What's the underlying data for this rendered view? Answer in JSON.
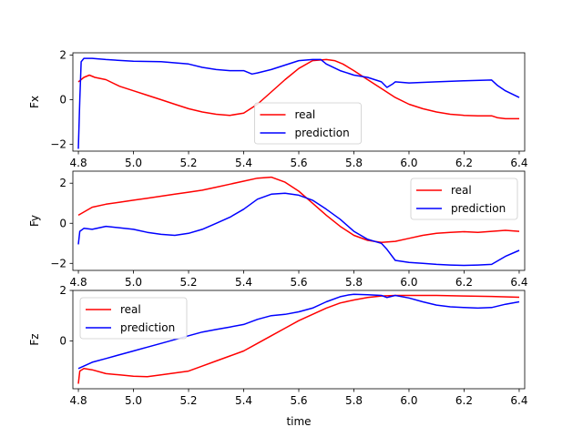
{
  "figure": {
    "xlabel": "time"
  },
  "chart_data": [
    {
      "type": "line",
      "ylabel": "Fx",
      "xlim": [
        4.78,
        6.42
      ],
      "ylim": [
        -2.3,
        2.1
      ],
      "xticks": [
        4.8,
        5.0,
        5.2,
        5.4,
        5.6,
        5.8,
        6.0,
        6.2,
        6.4
      ],
      "xtick_labels": [
        "4.8",
        "5.0",
        "5.2",
        "5.4",
        "5.6",
        "5.8",
        "6.0",
        "6.2",
        "6.4"
      ],
      "yticks": [
        -2,
        0,
        2
      ],
      "ytick_labels": [
        "−2",
        "0",
        "2"
      ],
      "legend": {
        "placement": "lower-center",
        "entries": [
          "real",
          "prediction"
        ]
      },
      "series": [
        {
          "name": "real",
          "color": "#ff0000",
          "x": [
            4.8,
            4.82,
            4.84,
            4.86,
            4.9,
            4.95,
            5.0,
            5.05,
            5.1,
            5.15,
            5.2,
            5.25,
            5.3,
            5.35,
            5.4,
            5.45,
            5.5,
            5.55,
            5.6,
            5.65,
            5.7,
            5.73,
            5.76,
            5.8,
            5.85,
            5.9,
            5.95,
            6.0,
            6.05,
            6.1,
            6.15,
            6.2,
            6.25,
            6.3,
            6.32,
            6.35,
            6.4
          ],
          "y": [
            0.8,
            1.0,
            1.1,
            1.0,
            0.9,
            0.6,
            0.4,
            0.2,
            0.0,
            -0.2,
            -0.4,
            -0.55,
            -0.65,
            -0.7,
            -0.6,
            -0.2,
            0.35,
            0.9,
            1.4,
            1.75,
            1.8,
            1.75,
            1.6,
            1.3,
            0.9,
            0.5,
            0.1,
            -0.2,
            -0.4,
            -0.55,
            -0.65,
            -0.7,
            -0.72,
            -0.72,
            -0.8,
            -0.85,
            -0.85
          ]
        },
        {
          "name": "prediction",
          "color": "#0000ff",
          "x": [
            4.8,
            4.805,
            4.81,
            4.82,
            4.85,
            4.9,
            5.0,
            5.1,
            5.2,
            5.25,
            5.3,
            5.35,
            5.4,
            5.43,
            5.45,
            5.5,
            5.55,
            5.6,
            5.65,
            5.68,
            5.7,
            5.75,
            5.8,
            5.85,
            5.9,
            5.92,
            5.94,
            5.95,
            6.0,
            6.1,
            6.2,
            6.3,
            6.32,
            6.35,
            6.4
          ],
          "y": [
            -2.2,
            0.0,
            1.7,
            1.85,
            1.85,
            1.8,
            1.72,
            1.7,
            1.6,
            1.45,
            1.35,
            1.3,
            1.3,
            1.15,
            1.2,
            1.35,
            1.55,
            1.75,
            1.8,
            1.8,
            1.6,
            1.3,
            1.1,
            1.0,
            0.8,
            0.55,
            0.7,
            0.8,
            0.75,
            0.8,
            0.85,
            0.88,
            0.65,
            0.4,
            0.1
          ]
        }
      ]
    },
    {
      "type": "line",
      "ylabel": "Fy",
      "xlim": [
        4.78,
        6.42
      ],
      "ylim": [
        -2.35,
        2.6
      ],
      "xticks": [
        4.8,
        5.0,
        5.2,
        5.4,
        5.6,
        5.8,
        6.0,
        6.2,
        6.4
      ],
      "xtick_labels": [
        "4.8",
        "5.0",
        "5.2",
        "5.4",
        "5.6",
        "5.8",
        "6.0",
        "6.2",
        "6.4"
      ],
      "yticks": [
        -2,
        0,
        2
      ],
      "ytick_labels": [
        "−2",
        "0",
        "2"
      ],
      "legend": {
        "placement": "upper-right",
        "entries": [
          "real",
          "prediction"
        ]
      },
      "series": [
        {
          "name": "real",
          "color": "#ff0000",
          "x": [
            4.8,
            4.85,
            4.9,
            4.95,
            5.0,
            5.05,
            5.1,
            5.15,
            5.2,
            5.25,
            5.3,
            5.35,
            5.4,
            5.45,
            5.5,
            5.55,
            5.6,
            5.65,
            5.7,
            5.75,
            5.8,
            5.85,
            5.9,
            5.95,
            6.0,
            6.05,
            6.1,
            6.15,
            6.2,
            6.25,
            6.3,
            6.35,
            6.4
          ],
          "y": [
            0.4,
            0.8,
            0.95,
            1.05,
            1.15,
            1.25,
            1.35,
            1.45,
            1.55,
            1.65,
            1.8,
            1.95,
            2.1,
            2.25,
            2.3,
            2.05,
            1.6,
            1.0,
            0.4,
            -0.15,
            -0.6,
            -0.85,
            -0.95,
            -0.9,
            -0.75,
            -0.6,
            -0.5,
            -0.45,
            -0.42,
            -0.45,
            -0.4,
            -0.35,
            -0.4
          ]
        },
        {
          "name": "prediction",
          "color": "#0000ff",
          "x": [
            4.8,
            4.805,
            4.82,
            4.85,
            4.9,
            5.0,
            5.05,
            5.1,
            5.15,
            5.2,
            5.25,
            5.3,
            5.35,
            5.4,
            5.45,
            5.5,
            5.55,
            5.6,
            5.65,
            5.7,
            5.75,
            5.8,
            5.85,
            5.9,
            5.92,
            5.95,
            6.0,
            6.05,
            6.1,
            6.15,
            6.2,
            6.25,
            6.3,
            6.35,
            6.4
          ],
          "y": [
            -1.05,
            -0.4,
            -0.25,
            -0.3,
            -0.15,
            -0.3,
            -0.45,
            -0.55,
            -0.6,
            -0.5,
            -0.3,
            0.0,
            0.3,
            0.7,
            1.2,
            1.45,
            1.5,
            1.4,
            1.15,
            0.7,
            0.2,
            -0.4,
            -0.8,
            -1.0,
            -1.3,
            -1.85,
            -1.95,
            -2.0,
            -2.05,
            -2.08,
            -2.1,
            -2.08,
            -2.05,
            -1.65,
            -1.35
          ]
        }
      ]
    },
    {
      "type": "line",
      "ylabel": "Fz",
      "xlabel": "time",
      "xlim": [
        4.78,
        6.42
      ],
      "ylim": [
        -1.9,
        2.0
      ],
      "xticks": [
        4.8,
        5.0,
        5.2,
        5.4,
        5.6,
        5.8,
        6.0,
        6.2,
        6.4
      ],
      "xtick_labels": [
        "4.8",
        "5.0",
        "5.2",
        "5.4",
        "5.6",
        "5.8",
        "6.0",
        "6.2",
        "6.4"
      ],
      "yticks": [
        0,
        2
      ],
      "ytick_labels": [
        "0",
        "2"
      ],
      "legend": {
        "placement": "upper-left",
        "entries": [
          "real",
          "prediction"
        ]
      },
      "series": [
        {
          "name": "real",
          "color": "#ff0000",
          "x": [
            4.8,
            4.805,
            4.82,
            4.85,
            4.9,
            4.95,
            5.0,
            5.05,
            5.1,
            5.2,
            5.25,
            5.3,
            5.35,
            5.4,
            5.45,
            5.5,
            5.55,
            5.6,
            5.65,
            5.7,
            5.75,
            5.8,
            5.85,
            5.9,
            5.95,
            6.0,
            6.1,
            6.2,
            6.3,
            6.4
          ],
          "y": [
            -1.7,
            -1.2,
            -1.1,
            -1.15,
            -1.3,
            -1.35,
            -1.4,
            -1.42,
            -1.35,
            -1.2,
            -1.0,
            -0.8,
            -0.6,
            -0.4,
            -0.1,
            0.2,
            0.5,
            0.8,
            1.05,
            1.3,
            1.5,
            1.62,
            1.72,
            1.78,
            1.8,
            1.8,
            1.8,
            1.78,
            1.76,
            1.73
          ]
        },
        {
          "name": "prediction",
          "color": "#0000ff",
          "x": [
            4.8,
            4.82,
            4.85,
            4.9,
            4.95,
            5.0,
            5.05,
            5.1,
            5.2,
            5.25,
            5.3,
            5.35,
            5.4,
            5.45,
            5.5,
            5.55,
            5.6,
            5.65,
            5.7,
            5.75,
            5.78,
            5.8,
            5.85,
            5.9,
            5.92,
            5.95,
            6.0,
            6.05,
            6.1,
            6.15,
            6.2,
            6.25,
            6.3,
            6.35,
            6.4
          ],
          "y": [
            -1.1,
            -1.0,
            -0.85,
            -0.7,
            -0.55,
            -0.4,
            -0.25,
            -0.1,
            0.2,
            0.35,
            0.45,
            0.55,
            0.65,
            0.85,
            1.0,
            1.05,
            1.15,
            1.3,
            1.55,
            1.75,
            1.82,
            1.85,
            1.83,
            1.8,
            1.72,
            1.8,
            1.7,
            1.55,
            1.42,
            1.35,
            1.32,
            1.3,
            1.32,
            1.45,
            1.55
          ]
        }
      ]
    }
  ]
}
